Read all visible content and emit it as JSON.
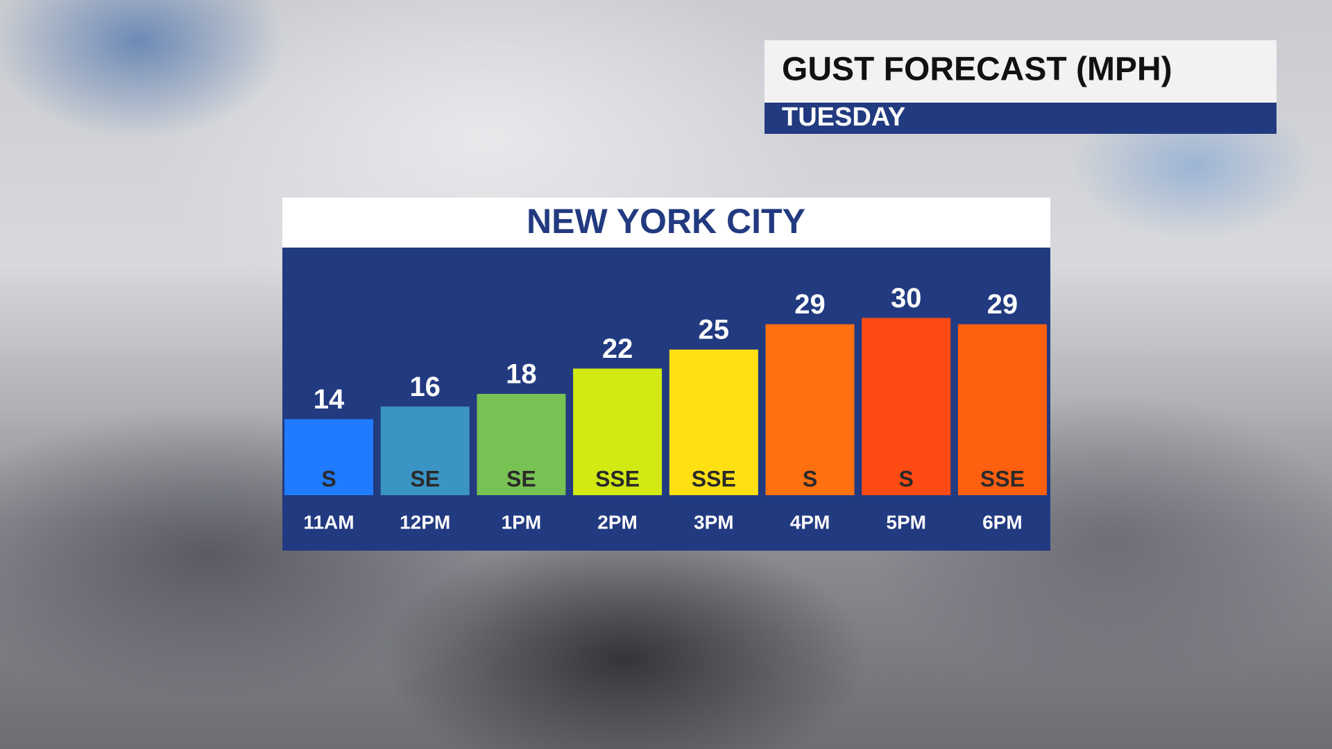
{
  "chart_data": {
    "type": "bar",
    "title": "GUST FORECAST (MPH)",
    "subtitle": "TUESDAY",
    "location": "NEW YORK CITY",
    "categories": [
      "11AM",
      "12PM",
      "1PM",
      "2PM",
      "3PM",
      "4PM",
      "5PM",
      "6PM"
    ],
    "values": [
      14,
      16,
      18,
      22,
      25,
      29,
      30,
      29
    ],
    "directions": [
      "S",
      "SE",
      "SE",
      "SSE",
      "SSE",
      "S",
      "S",
      "SSE"
    ],
    "colors": [
      "#1f7bff",
      "#3a94c4",
      "#78c153",
      "#d2ea12",
      "#ffe012",
      "#ff7010",
      "#ff4a14",
      "#ff6010"
    ],
    "ylim": [
      2,
      41
    ]
  }
}
